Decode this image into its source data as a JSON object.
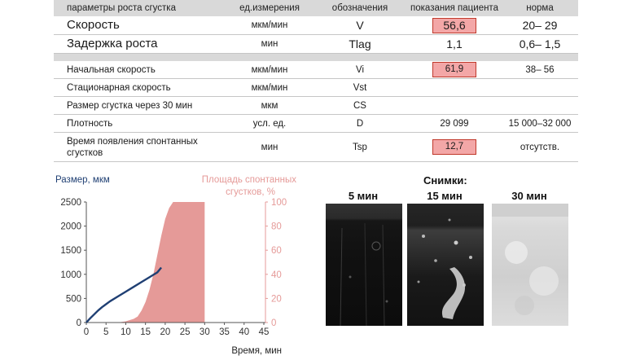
{
  "table": {
    "headers": [
      "параметры роста сгустка",
      "ед.измерения",
      "обозначения",
      "показания пациента",
      "норма"
    ],
    "rows_group1": [
      {
        "param": "Скорость",
        "unit": "мкм/мин",
        "symbol": "V",
        "value": "56,6",
        "norm": "20– 29",
        "highlight": true
      },
      {
        "param": "Задержка роста",
        "unit": "мин",
        "symbol": "Tlag",
        "value": "1,1",
        "norm": "0,6– 1,5",
        "highlight": false
      }
    ],
    "rows_group2": [
      {
        "param": "Начальная скорость",
        "unit": "мкм/мин",
        "symbol": "Vi",
        "value": "61,9",
        "norm": "38– 56",
        "highlight": true
      },
      {
        "param": "Стационарная скорость",
        "unit": "мкм/мин",
        "symbol": "Vst",
        "value": "",
        "norm": "",
        "highlight": false
      },
      {
        "param": "Размер сгустка через 30 мин",
        "unit": "мкм",
        "symbol": "CS",
        "value": "",
        "norm": "",
        "highlight": false
      },
      {
        "param": "Плотность",
        "unit": "усл. ед.",
        "symbol": "D",
        "value": "29 099",
        "norm": "15 000–32 000",
        "highlight": false
      },
      {
        "param": "Время появления спонтанных сгустков",
        "unit": "мин",
        "symbol": "Tsp",
        "value": "12,7",
        "norm": "отсутств.",
        "highlight": true
      }
    ]
  },
  "chart_data": {
    "type": "line",
    "ylabel_left": "Размер, мкм",
    "ylabel_right": "Площадь спонтанных сгустков, %",
    "xlabel": "Время, мин",
    "x_ticks": [
      0,
      5,
      10,
      15,
      20,
      25,
      30,
      35,
      40,
      45
    ],
    "y_left_ticks": [
      0,
      500,
      1000,
      1500,
      2000,
      2500
    ],
    "y_right_ticks": [
      0,
      20,
      40,
      60,
      80,
      100
    ],
    "xlim": [
      0,
      45
    ],
    "ylim_left": [
      0,
      2500
    ],
    "ylim_right": [
      0,
      100
    ],
    "colors": {
      "size": "#1f3f73",
      "area": "#e59a98",
      "axis_left": "#1f3f73",
      "axis_right": "#e59a98"
    },
    "series": [
      {
        "axis": "left",
        "kind": "line",
        "x": [
          0,
          1,
          2,
          3,
          4,
          5,
          6,
          8,
          10,
          12,
          14,
          16,
          17,
          18,
          19
        ],
        "y": [
          0,
          90,
          170,
          250,
          320,
          380,
          440,
          540,
          640,
          740,
          840,
          940,
          990,
          1040,
          1140
        ]
      },
      {
        "axis": "right",
        "kind": "area",
        "x": [
          0,
          8,
          10,
          12,
          13,
          14,
          15,
          16,
          17,
          18,
          19,
          20,
          21,
          22,
          30
        ],
        "y": [
          0,
          0,
          1,
          3,
          5,
          10,
          17,
          27,
          40,
          56,
          72,
          86,
          95,
          100,
          100
        ]
      }
    ]
  },
  "snapshots": {
    "title": "Снимки:",
    "items": [
      {
        "label": "5 мин"
      },
      {
        "label": "15 мин"
      },
      {
        "label": "30 мин"
      }
    ]
  }
}
